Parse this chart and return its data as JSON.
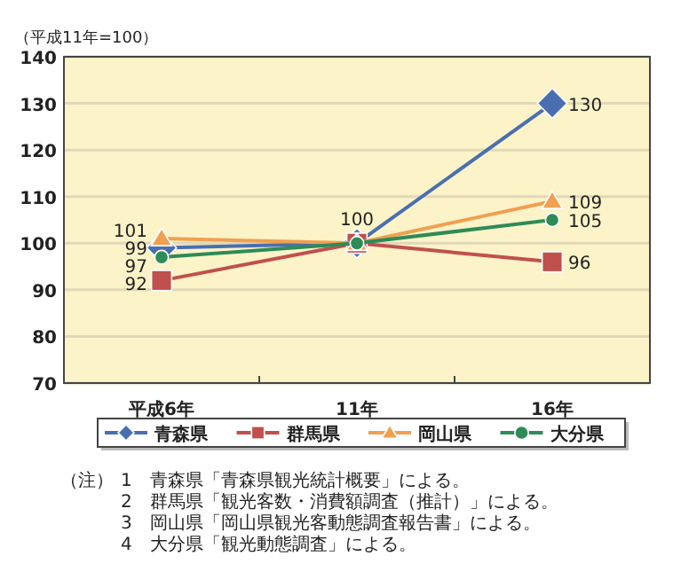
{
  "chart_data": {
    "type": "line",
    "ylabel": "（平成11年=100）",
    "categories": [
      "平成6年",
      "11年",
      "16年"
    ],
    "series": [
      {
        "name": "青森県",
        "color": "#4a6fb0",
        "marker": "diamond",
        "values": [
          99,
          100,
          130
        ],
        "value_labels": [
          "99",
          "100",
          "130"
        ]
      },
      {
        "name": "群馬県",
        "color": "#c0504d",
        "marker": "square",
        "values": [
          92,
          100,
          96
        ],
        "value_labels": [
          "92",
          null,
          "96"
        ]
      },
      {
        "name": "岡山県",
        "color": "#f0a050",
        "marker": "triangle",
        "values": [
          101,
          100,
          109
        ],
        "value_labels": [
          "101",
          null,
          "109"
        ]
      },
      {
        "name": "大分県",
        "color": "#2e8b57",
        "marker": "circle",
        "values": [
          97,
          100,
          105
        ],
        "value_labels": [
          "97",
          null,
          "105"
        ]
      }
    ],
    "ylim": [
      70,
      140
    ],
    "yticks": [
      70,
      80,
      90,
      100,
      110,
      120,
      130,
      140
    ],
    "grid": "y",
    "legend": "bottom",
    "annotations": [
      "（注）",
      "1　青森県「青森県観光統計概要」による。",
      "2　群馬県「観光客数・消費額調査（推計）」による。",
      "3　岡山県「岡山県観光客動態調査報告書」による。",
      "4　大分県「観光動態調査」による。"
    ]
  }
}
